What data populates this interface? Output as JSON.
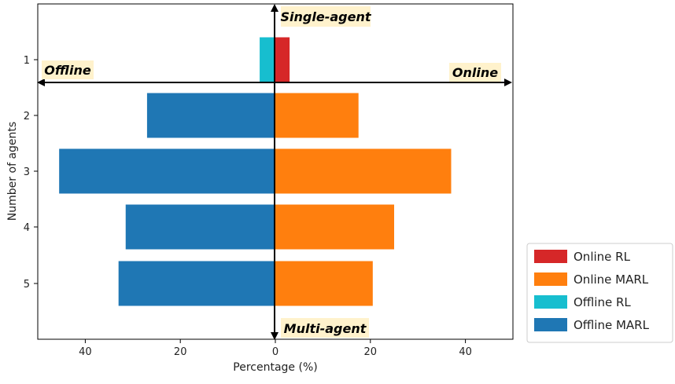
{
  "chart_data": {
    "type": "bar",
    "orientation": "horizontal",
    "categories": [
      "1",
      "2",
      "3",
      "4",
      "5"
    ],
    "xlabel": "Percentage (%)",
    "ylabel": "Number of agents",
    "xlim": [
      -50,
      50
    ],
    "x_tick_values": [
      -40,
      -20,
      0,
      20,
      40
    ],
    "x_tick_labels": [
      "40",
      "20",
      "0",
      "20",
      "40"
    ],
    "grid": false,
    "legend_position": "bottom-right, outside plot",
    "series": [
      {
        "name": "Online RL",
        "side": "right",
        "color": "#d62728",
        "values": [
          3,
          0,
          0,
          0,
          0
        ]
      },
      {
        "name": "Online MARL",
        "side": "right",
        "color": "#ff7f0e",
        "values": [
          0,
          17.5,
          37,
          25,
          20.5
        ]
      },
      {
        "name": "Offline RL",
        "side": "left",
        "color": "#17becf",
        "values": [
          3.3,
          0,
          0,
          0,
          0
        ]
      },
      {
        "name": "Offline MARL",
        "side": "left",
        "color": "#1f77b4",
        "values": [
          0,
          27,
          45.5,
          31.5,
          33
        ]
      }
    ],
    "annotations": {
      "top": "Single-agent",
      "bottom": "Multi-agent",
      "left": "Offline",
      "right": "Online"
    }
  }
}
